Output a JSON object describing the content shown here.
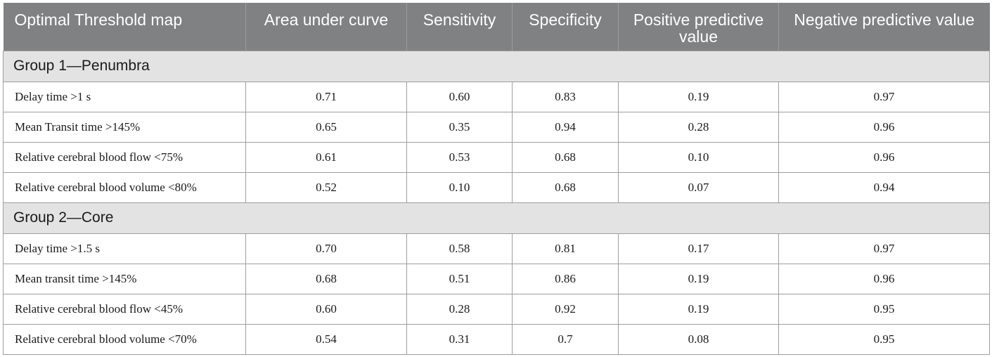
{
  "table": {
    "headers": [
      "Optimal Threshold map",
      "Area under curve",
      "Sensitivity",
      "Specificity",
      "Positive predictive value",
      "Negative predictive value"
    ],
    "groups": [
      {
        "title": "Group 1—Penumbra",
        "rows": [
          [
            "Delay time >1 s",
            "0.71",
            "0.60",
            "0.83",
            "0.19",
            "0.97"
          ],
          [
            "Mean Transit time >145%",
            "0.65",
            "0.35",
            "0.94",
            "0.28",
            "0.96"
          ],
          [
            "Relative cerebral blood flow <75%",
            "0.61",
            "0.53",
            "0.68",
            "0.10",
            "0.96"
          ],
          [
            "Relative cerebral blood volume <80%",
            "0.52",
            "0.10",
            "0.68",
            "0.07",
            "0.94"
          ]
        ]
      },
      {
        "title": "Group 2—Core",
        "rows": [
          [
            "Delay time >1.5 s",
            "0.70",
            "0.58",
            "0.81",
            "0.17",
            "0.97"
          ],
          [
            "Mean transit time >145%",
            "0.68",
            "0.51",
            "0.86",
            "0.19",
            "0.96"
          ],
          [
            "Relative cerebral blood flow <45%",
            "0.60",
            "0.28",
            "0.92",
            "0.19",
            "0.95"
          ],
          [
            "Relative cerebral blood volume <70%",
            "0.54",
            "0.31",
            "0.7",
            "0.08",
            "0.95"
          ]
        ]
      }
    ]
  },
  "colors": {
    "header_bg": "#7f8182",
    "header_text": "#ffffff",
    "group_bg": "#e3e3e3",
    "border": "#9e9e9e"
  }
}
